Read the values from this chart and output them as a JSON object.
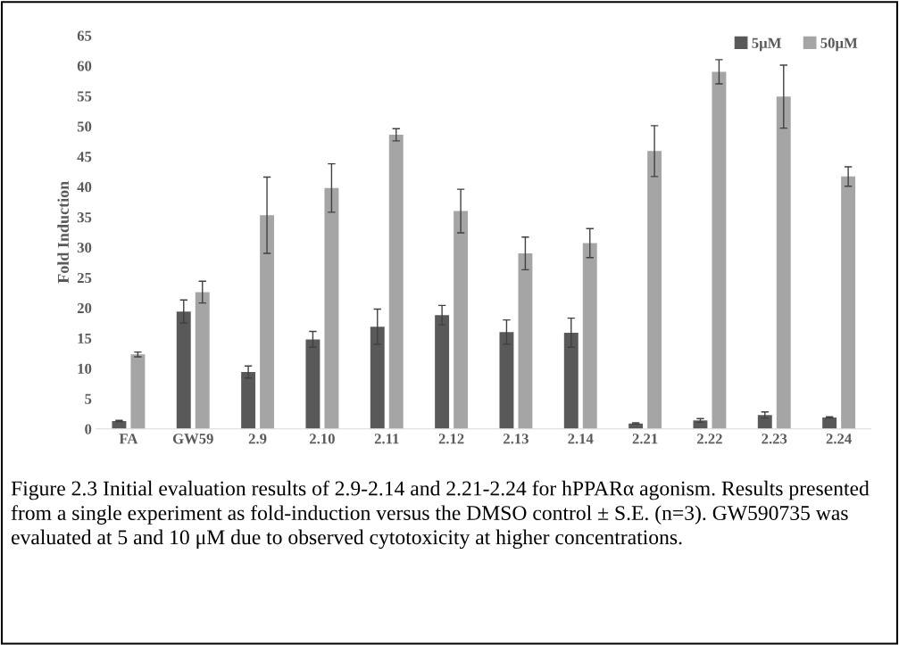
{
  "chart_data": {
    "type": "bar",
    "ylabel": "Fold Induction",
    "categories": [
      "FA",
      "GW59",
      "2.9",
      "2.10",
      "2.11",
      "2.12",
      "2.13",
      "2.14",
      "2.21",
      "2.22",
      "2.23",
      "2.24"
    ],
    "series": [
      {
        "name": "5µM",
        "color": "#595959",
        "values": [
          1.3,
          19.4,
          9.4,
          14.8,
          16.9,
          18.8,
          16.0,
          15.9,
          0.9,
          1.4,
          2.3,
          1.9
        ],
        "errors": [
          0.1,
          1.9,
          1.0,
          1.3,
          2.9,
          1.6,
          2.0,
          2.4,
          0.1,
          0.3,
          0.5,
          0.1
        ]
      },
      {
        "name": "50µM",
        "color": "#a5a5a5",
        "values": [
          12.3,
          22.6,
          35.3,
          39.8,
          48.6,
          36.0,
          29.0,
          30.7,
          45.9,
          59.0,
          54.9,
          41.7
        ],
        "errors": [
          0.4,
          1.8,
          6.3,
          4.0,
          1.0,
          3.6,
          2.7,
          2.4,
          4.2,
          2.0,
          5.2,
          1.6
        ]
      }
    ],
    "ylim": [
      0,
      65
    ],
    "yticks": [
      0,
      5,
      10,
      15,
      20,
      25,
      30,
      35,
      40,
      45,
      50,
      55,
      60,
      65
    ],
    "grid": false,
    "legend": "top right",
    "annotations": [
      "Figure 2.3 Initial evaluation results of 2.9-2.14 and 2.21-2.24 for hPPARα agonism. Results presented from a single experiment as fold-induction versus the DMSO control ± S.E. (n=3). GW590735 was evaluated at 5 and 10 μM due to observed cytotoxicity at higher concentrations."
    ]
  }
}
